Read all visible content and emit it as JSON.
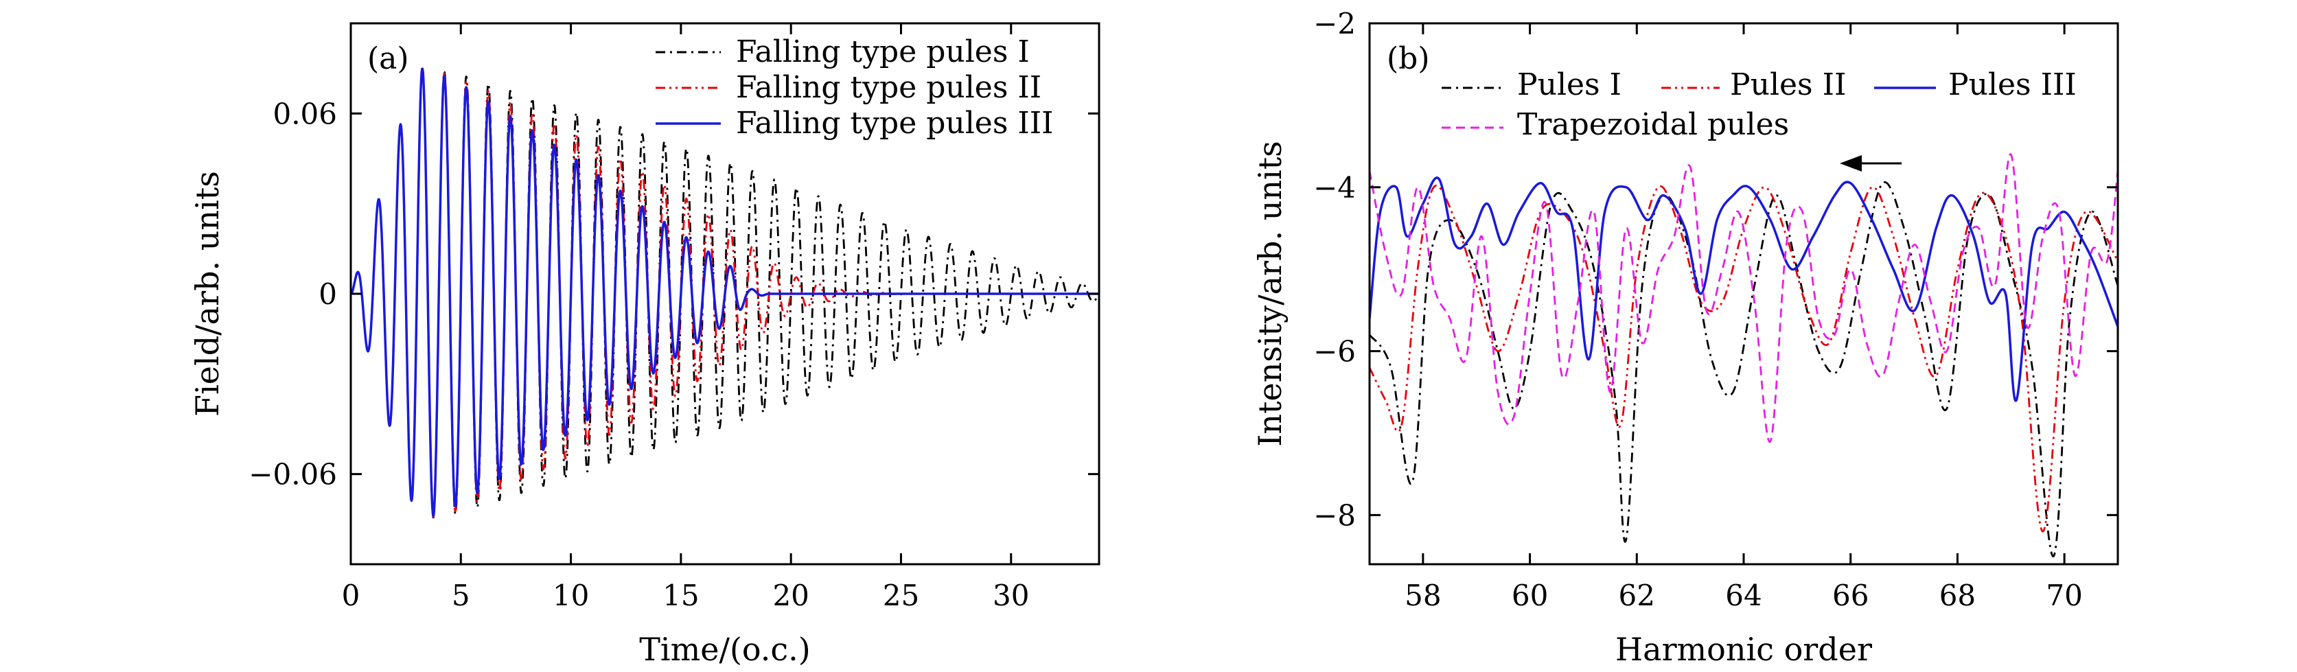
{
  "chart_data": [
    {
      "type": "line",
      "panel_label": "(a)",
      "xlabel": "Time/(o.c.)",
      "ylabel": "Field/arb. units",
      "xlim": [
        0,
        34
      ],
      "ylim": [
        -0.09,
        0.09
      ],
      "xticks": [
        0,
        5,
        10,
        15,
        20,
        25,
        30
      ],
      "yticks": [
        -0.06,
        0,
        0.06
      ],
      "ytick_labels": [
        "−0.06",
        "0",
        "0.06"
      ],
      "legend_position": "top-right",
      "series": [
        {
          "name": "Falling type pules I",
          "color": "#000000",
          "style": "dash-dot",
          "x": [
            0,
            1,
            2,
            3,
            3.4,
            5,
            7.5,
            10,
            12.5,
            15,
            17.5,
            20,
            22.5,
            25,
            27.5,
            30,
            32.5,
            34
          ],
          "envelope": [
            0,
            0.025,
            0.05,
            0.075,
            0.075,
            0.073,
            0.067,
            0.061,
            0.055,
            0.049,
            0.043,
            0.036,
            0.029,
            0.022,
            0.016,
            0.01,
            0.005,
            0.002
          ]
        },
        {
          "name": "Falling type pules II",
          "color": "#e8000b",
          "style": "dash-dot-dot",
          "x": [
            0,
            1,
            2,
            3,
            3.4,
            5,
            7.5,
            10,
            12.5,
            15,
            17.5,
            20,
            22.5,
            25
          ],
          "envelope": [
            0,
            0.025,
            0.05,
            0.075,
            0.075,
            0.072,
            0.063,
            0.054,
            0.044,
            0.033,
            0.02,
            0.006,
            0.001,
            0
          ]
        },
        {
          "name": "Falling type pules III",
          "color": "#1a1adc",
          "style": "solid",
          "x": [
            0,
            1,
            2,
            3,
            3.4,
            5,
            7.5,
            10,
            12.5,
            15,
            17.5,
            18,
            19
          ],
          "envelope": [
            0,
            0.025,
            0.05,
            0.075,
            0.075,
            0.07,
            0.058,
            0.046,
            0.033,
            0.02,
            0.008,
            0.002,
            0
          ]
        }
      ]
    },
    {
      "type": "line",
      "panel_label": "(b)",
      "xlabel": "Harmonic order",
      "ylabel": "Intensity/arb. units",
      "xlim": [
        57,
        71
      ],
      "ylim": [
        -8.6,
        -2
      ],
      "xticks": [
        58,
        60,
        62,
        64,
        66,
        68,
        70
      ],
      "yticks": [
        -8,
        -6,
        -4,
        -2
      ],
      "ytick_labels": [
        "−8",
        "−6",
        "−4",
        "−2"
      ],
      "legend_position": "top",
      "annotation": "left arrow near (66, -3.75)",
      "series": [
        {
          "name": "Pules I",
          "color": "#000000",
          "style": "dash-dot",
          "x": [
            57,
            57.4,
            57.8,
            58.1,
            58.5,
            59,
            59.4,
            59.7,
            60,
            60.4,
            60.8,
            61.2,
            61.6,
            61.8,
            62.1,
            62.5,
            63,
            63.4,
            63.8,
            64.2,
            64.6,
            65,
            65.4,
            65.8,
            66.2,
            66.6,
            67,
            67.4,
            67.8,
            68.2,
            68.6,
            69,
            69.4,
            69.8,
            70.1,
            70.5,
            71
          ],
          "y": [
            -5.8,
            -6.2,
            -7.6,
            -5.0,
            -4.4,
            -5.0,
            -6.0,
            -6.7,
            -6.0,
            -4.2,
            -4.3,
            -5.0,
            -6.6,
            -8.3,
            -5.2,
            -4.1,
            -4.8,
            -6.1,
            -6.5,
            -5.2,
            -4.1,
            -5.0,
            -6.0,
            -6.2,
            -5.0,
            -3.95,
            -4.5,
            -5.6,
            -6.7,
            -4.6,
            -4.1,
            -5.0,
            -6.2,
            -8.5,
            -5.6,
            -4.3,
            -5.2
          ]
        },
        {
          "name": "Pules II",
          "color": "#e8000b",
          "style": "dash-dot-dot",
          "x": [
            57,
            57.3,
            57.6,
            57.9,
            58.2,
            58.6,
            59,
            59.4,
            59.8,
            60.2,
            60.6,
            61,
            61.4,
            61.7,
            62,
            62.4,
            62.8,
            63.2,
            63.6,
            64,
            64.4,
            64.8,
            65.2,
            65.6,
            66,
            66.4,
            66.8,
            67.2,
            67.6,
            68,
            68.4,
            68.8,
            69.2,
            69.6,
            70,
            70.4,
            71
          ],
          "y": [
            -6.2,
            -6.6,
            -6.9,
            -5.0,
            -4.0,
            -4.4,
            -5.2,
            -6.0,
            -5.3,
            -4.3,
            -4.3,
            -4.8,
            -6.0,
            -6.9,
            -5.0,
            -4.0,
            -4.5,
            -5.4,
            -5.4,
            -4.5,
            -4.0,
            -4.6,
            -5.5,
            -5.9,
            -4.8,
            -4.0,
            -4.6,
            -5.6,
            -6.3,
            -5.0,
            -4.1,
            -4.4,
            -5.6,
            -8.2,
            -5.4,
            -4.3,
            -4.9
          ]
        },
        {
          "name": "Pules III",
          "color": "#1a1adc",
          "style": "solid",
          "x": [
            57,
            57.2,
            57.5,
            57.7,
            58,
            58.3,
            58.6,
            58.9,
            59.2,
            59.5,
            59.8,
            60.2,
            60.5,
            60.8,
            61.1,
            61.4,
            61.8,
            62.2,
            62.5,
            62.9,
            63.2,
            63.5,
            63.8,
            64.1,
            64.5,
            64.9,
            65.3,
            65.7,
            66,
            66.4,
            66.8,
            67.2,
            67.6,
            67.9,
            68.3,
            68.6,
            68.9,
            69.1,
            69.4,
            69.7,
            70,
            70.3,
            70.6,
            71
          ],
          "y": [
            -5.6,
            -4.3,
            -4.0,
            -4.6,
            -4.2,
            -3.9,
            -4.7,
            -4.6,
            -4.2,
            -4.7,
            -4.3,
            -3.95,
            -4.3,
            -4.5,
            -6.1,
            -4.3,
            -4.0,
            -4.4,
            -4.1,
            -4.5,
            -5.3,
            -4.4,
            -4.1,
            -4.0,
            -4.4,
            -5.0,
            -4.6,
            -4.1,
            -3.95,
            -4.4,
            -5.0,
            -5.5,
            -4.5,
            -4.1,
            -4.6,
            -5.4,
            -5.3,
            -6.6,
            -4.7,
            -4.5,
            -4.3,
            -4.6,
            -5.0,
            -5.7
          ]
        },
        {
          "name": "Trapezoidal pules",
          "color": "#e61ee6",
          "style": "dashed",
          "x": [
            57,
            57.3,
            57.6,
            57.9,
            58.2,
            58.5,
            58.8,
            59.1,
            59.4,
            59.7,
            60,
            60.3,
            60.6,
            60.9,
            61.2,
            61.5,
            61.8,
            62.1,
            62.4,
            62.7,
            63,
            63.3,
            63.6,
            63.9,
            64.2,
            64.5,
            64.8,
            65.1,
            65.4,
            65.7,
            66,
            66.3,
            66.6,
            66.9,
            67.2,
            67.5,
            67.8,
            68.1,
            68.4,
            68.7,
            69,
            69.3,
            69.6,
            69.9,
            70.2,
            70.5,
            70.8,
            71
          ],
          "y": [
            -3.8,
            -4.8,
            -5.3,
            -4.0,
            -5.2,
            -5.6,
            -6.1,
            -4.6,
            -6.5,
            -6.8,
            -5.3,
            -4.2,
            -6.3,
            -5.4,
            -4.3,
            -6.5,
            -4.5,
            -5.9,
            -5.0,
            -4.6,
            -3.75,
            -5.5,
            -5.0,
            -4.3,
            -5.4,
            -7.1,
            -4.7,
            -4.3,
            -5.6,
            -5.8,
            -5.0,
            -5.9,
            -6.3,
            -5.4,
            -4.7,
            -5.4,
            -6.0,
            -4.8,
            -4.5,
            -5.2,
            -3.6,
            -5.7,
            -4.6,
            -4.3,
            -6.3,
            -4.8,
            -4.9,
            -3.8
          ]
        }
      ]
    }
  ]
}
